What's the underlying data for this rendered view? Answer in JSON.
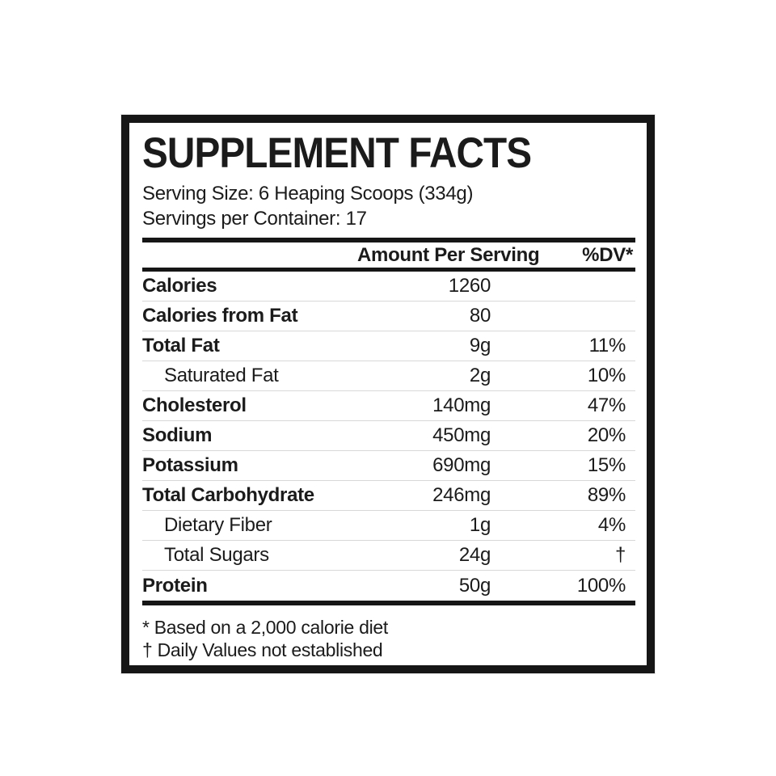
{
  "label": {
    "title": "SUPPLEMENT FACTS",
    "serving_size": "Serving Size: 6 Heaping Scoops (334g)",
    "servings_per_container": "Servings per Container: 17",
    "columns": {
      "amount": "Amount Per Serving",
      "dv": "%DV*"
    },
    "rows": [
      {
        "name": "Calories",
        "amount": "1260",
        "dv": "",
        "bold": true,
        "indent": false
      },
      {
        "name": "Calories from Fat",
        "amount": "80",
        "dv": "",
        "bold": true,
        "indent": false
      },
      {
        "name": "Total Fat",
        "amount": "9g",
        "dv": "11%",
        "bold": true,
        "indent": false
      },
      {
        "name": "Saturated Fat",
        "amount": "2g",
        "dv": "10%",
        "bold": false,
        "indent": true
      },
      {
        "name": "Cholesterol",
        "amount": "140mg",
        "dv": "47%",
        "bold": true,
        "indent": false
      },
      {
        "name": "Sodium",
        "amount": "450mg",
        "dv": "20%",
        "bold": true,
        "indent": false
      },
      {
        "name": "Potassium",
        "amount": "690mg",
        "dv": "15%",
        "bold": true,
        "indent": false
      },
      {
        "name": "Total Carbohydrate",
        "amount": "246mg",
        "dv": "89%",
        "bold": true,
        "indent": false
      },
      {
        "name": "Dietary Fiber",
        "amount": "1g",
        "dv": "4%",
        "bold": false,
        "indent": true
      },
      {
        "name": "Total Sugars",
        "amount": "24g",
        "dv": "†",
        "bold": false,
        "indent": true
      },
      {
        "name": "Protein",
        "amount": "50g",
        "dv": "100%",
        "bold": true,
        "indent": false
      }
    ],
    "footnotes": [
      "* Based on a 2,000 calorie diet",
      "† Daily Values not established"
    ],
    "colors": {
      "text": "#1b1b1b",
      "border": "#161616",
      "hairline": "#d8d8d8",
      "background": "#ffffff"
    }
  }
}
